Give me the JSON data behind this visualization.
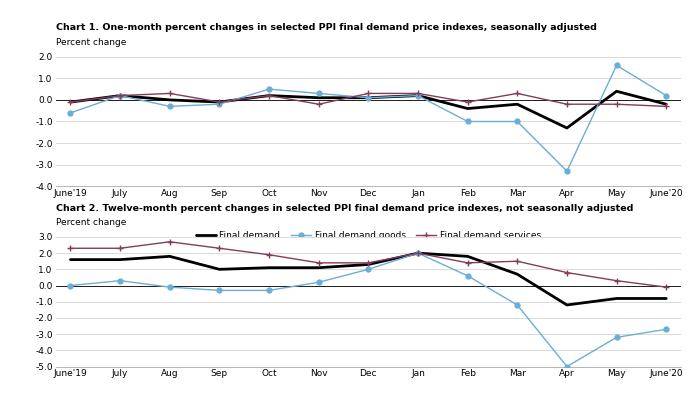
{
  "x_labels": [
    "June'19",
    "July",
    "Aug",
    "Sep",
    "Oct",
    "Nov",
    "Dec",
    "Jan",
    "Feb",
    "Mar",
    "Apr",
    "May",
    "June'20"
  ],
  "chart1": {
    "title": "Chart 1. One-month percent changes in selected PPI final demand price indexes, seasonally adjusted",
    "ylabel": "Percent change",
    "ylim": [
      -4.0,
      2.0
    ],
    "yticks": [
      -4.0,
      -3.0,
      -2.0,
      -1.0,
      0.0,
      1.0,
      2.0
    ],
    "final_demand": [
      -0.1,
      0.2,
      0.0,
      -0.1,
      0.2,
      0.1,
      0.1,
      0.2,
      -0.4,
      -0.2,
      -1.3,
      0.4,
      -0.2
    ],
    "final_demand_goods": [
      -0.6,
      0.2,
      -0.3,
      -0.2,
      0.5,
      0.3,
      0.1,
      0.2,
      -1.0,
      -1.0,
      -3.3,
      1.6,
      0.2
    ],
    "final_demand_services": [
      -0.1,
      0.2,
      0.3,
      -0.1,
      0.2,
      -0.2,
      0.3,
      0.3,
      -0.1,
      0.3,
      -0.2,
      -0.2,
      -0.3
    ]
  },
  "chart2": {
    "title": "Chart 2. Twelve-month percent changes in selected PPI final demand price indexes, not seasonally adjusted",
    "ylabel": "Percent change",
    "ylim": [
      -5.0,
      3.0
    ],
    "yticks": [
      -5.0,
      -4.0,
      -3.0,
      -2.0,
      -1.0,
      0.0,
      1.0,
      2.0,
      3.0
    ],
    "final_demand": [
      1.6,
      1.6,
      1.8,
      1.0,
      1.1,
      1.1,
      1.3,
      2.0,
      1.8,
      0.7,
      -1.2,
      -0.8,
      -0.8
    ],
    "final_demand_goods": [
      0.0,
      0.3,
      -0.1,
      -0.3,
      -0.3,
      0.2,
      1.0,
      2.0,
      0.6,
      -1.2,
      -5.0,
      -3.2,
      -2.7
    ],
    "final_demand_services": [
      2.3,
      2.3,
      2.7,
      2.3,
      1.9,
      1.4,
      1.4,
      2.0,
      1.4,
      1.5,
      0.8,
      0.3,
      -0.1
    ]
  },
  "colors": {
    "final_demand": "#000000",
    "final_demand_goods": "#6baed6",
    "final_demand_services": "#843c5c"
  },
  "legend": {
    "final_demand": "Final demand",
    "final_demand_goods": "Final demand goods",
    "final_demand_services": "Final demand services"
  },
  "bg_color": "#ffffff"
}
